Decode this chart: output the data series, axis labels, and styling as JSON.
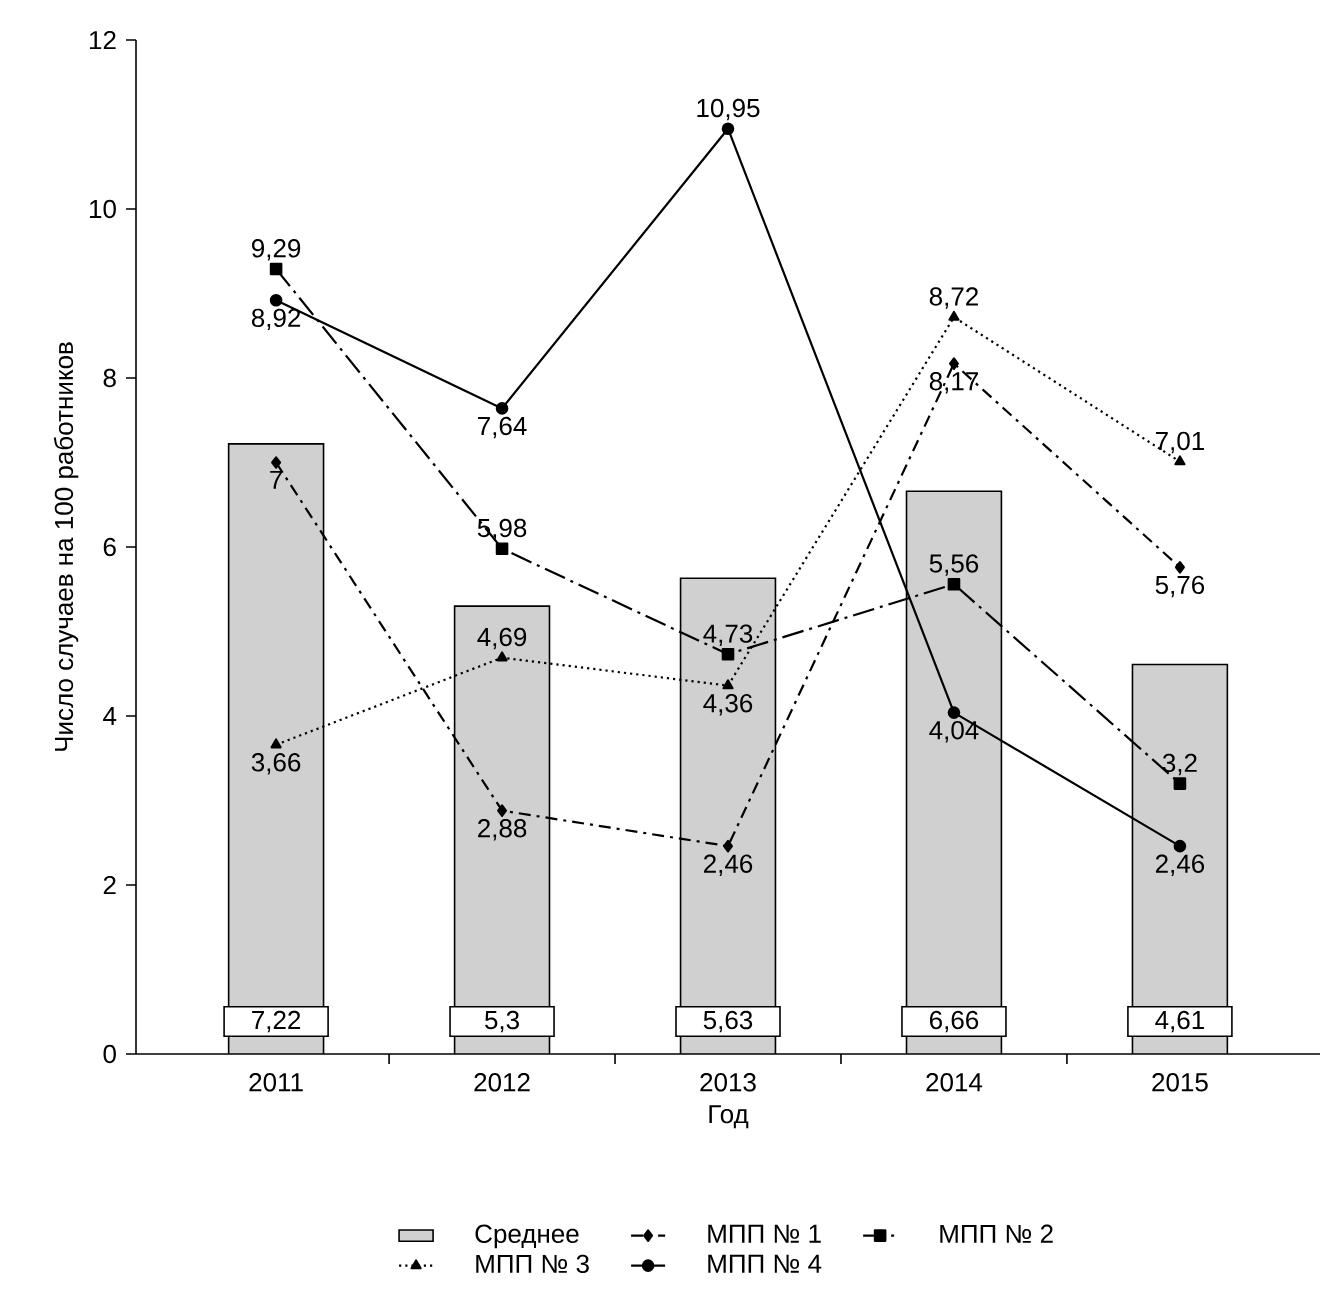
{
  "chart_data": {
    "type": "line",
    "xlabel": "Год",
    "ylabel": "Число случаев на 100 работников",
    "categories": [
      "2011",
      "2012",
      "2013",
      "2014",
      "2015"
    ],
    "series": [
      {
        "name": "Среднее",
        "type": "bar",
        "color": "#d0d0d0",
        "values": [
          7.22,
          5.3,
          5.63,
          6.66,
          4.61
        ],
        "value_labels": [
          "7,22",
          "5,3",
          "5,63",
          "6,66",
          "4,61"
        ]
      },
      {
        "name": "МПП № 1",
        "color": "#000000",
        "marker": "diamond",
        "line_style": "dashdot",
        "values": [
          7,
          2.88,
          2.46,
          8.17,
          5.76
        ],
        "value_labels": [
          "7",
          "2,88",
          "2,46",
          "8,17",
          "5,76"
        ]
      },
      {
        "name": "МПП № 2",
        "color": "#000000",
        "marker": "square",
        "line_style": "longdashdot",
        "values": [
          9.29,
          5.98,
          4.73,
          5.56,
          3.2
        ],
        "value_labels": [
          "9,29",
          "5,98",
          "4,73",
          "5,56",
          "3,2"
        ]
      },
      {
        "name": "МПП № 3",
        "color": "#000000",
        "marker": "triangle",
        "line_style": "dotted",
        "values": [
          3.66,
          4.69,
          4.36,
          8.72,
          7.01
        ],
        "value_labels": [
          "3,66",
          "4,69",
          "4,36",
          "8,72",
          "7,01"
        ]
      },
      {
        "name": "МПП № 4",
        "color": "#000000",
        "marker": "circle",
        "line_style": "solid",
        "values": [
          8.92,
          7.64,
          10.95,
          4.04,
          2.46
        ],
        "value_labels": [
          "8,92",
          "7,64",
          "10,95",
          "4,04",
          "2,46"
        ]
      }
    ],
    "ylim": [
      0,
      12
    ],
    "yticks": [
      0,
      2,
      4,
      6,
      8,
      10,
      12
    ],
    "grid": false,
    "legend": "bottom"
  }
}
